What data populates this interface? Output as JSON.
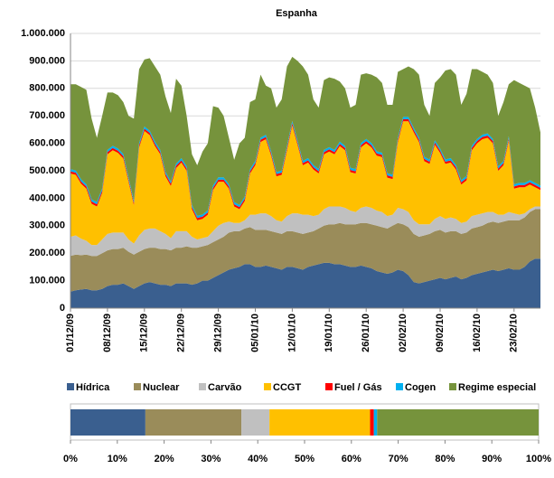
{
  "chart_data": [
    {
      "type": "area",
      "stacked": true,
      "title": "Espanha",
      "grid": true,
      "categories": [
        "01/12/09",
        null,
        null,
        null,
        null,
        null,
        null,
        "08/12/09",
        null,
        null,
        null,
        null,
        null,
        null,
        "15/12/09",
        null,
        null,
        null,
        null,
        null,
        null,
        "22/12/09",
        null,
        null,
        null,
        null,
        null,
        null,
        "29/12/09",
        null,
        null,
        null,
        null,
        null,
        null,
        "05/01/10",
        null,
        null,
        null,
        null,
        null,
        null,
        "12/01/10",
        null,
        null,
        null,
        null,
        null,
        null,
        "19/01/10",
        null,
        null,
        null,
        null,
        null,
        null,
        "26/01/10",
        null,
        null,
        null,
        null,
        null,
        null,
        "02/02/10",
        null,
        null,
        null,
        null,
        null,
        null,
        "09/02/10",
        null,
        null,
        null,
        null,
        null,
        null,
        "16/02/10",
        null,
        null,
        null,
        null,
        null,
        null,
        "23/02/10",
        null,
        null,
        null,
        null,
        null
      ],
      "series": [
        {
          "name": "Hídrica",
          "color": "#3a5f8f",
          "values": [
            60000,
            65000,
            68000,
            70000,
            65000,
            65000,
            70000,
            80000,
            85000,
            85000,
            90000,
            80000,
            70000,
            80000,
            90000,
            95000,
            90000,
            85000,
            85000,
            80000,
            90000,
            90000,
            90000,
            85000,
            90000,
            100000,
            100000,
            110000,
            120000,
            130000,
            140000,
            145000,
            150000,
            160000,
            160000,
            150000,
            150000,
            155000,
            150000,
            145000,
            140000,
            150000,
            150000,
            145000,
            140000,
            150000,
            155000,
            160000,
            165000,
            165000,
            160000,
            160000,
            155000,
            150000,
            150000,
            155000,
            150000,
            145000,
            135000,
            130000,
            125000,
            130000,
            140000,
            135000,
            120000,
            95000,
            90000,
            95000,
            100000,
            105000,
            110000,
            105000,
            110000,
            115000,
            105000,
            110000,
            120000,
            125000,
            130000,
            135000,
            140000,
            135000,
            140000,
            145000,
            140000,
            140000,
            150000,
            170000,
            180000,
            180000
          ]
        },
        {
          "name": "Nuclear",
          "color": "#9a8c5a",
          "values": [
            130000,
            130000,
            125000,
            125000,
            125000,
            125000,
            130000,
            130000,
            130000,
            130000,
            130000,
            125000,
            125000,
            125000,
            125000,
            125000,
            130000,
            130000,
            130000,
            130000,
            130000,
            130000,
            135000,
            135000,
            130000,
            125000,
            130000,
            130000,
            130000,
            130000,
            135000,
            135000,
            130000,
            130000,
            135000,
            135000,
            135000,
            130000,
            130000,
            130000,
            130000,
            130000,
            130000,
            130000,
            130000,
            125000,
            125000,
            130000,
            135000,
            140000,
            145000,
            150000,
            150000,
            155000,
            155000,
            155000,
            160000,
            160000,
            165000,
            165000,
            165000,
            170000,
            170000,
            170000,
            175000,
            175000,
            170000,
            170000,
            170000,
            175000,
            175000,
            170000,
            170000,
            165000,
            165000,
            165000,
            170000,
            170000,
            170000,
            175000,
            175000,
            175000,
            175000,
            175000,
            180000,
            180000,
            180000,
            180000,
            180000,
            180000
          ]
        },
        {
          "name": "Carvão",
          "color": "#c0c0c0",
          "values": [
            70000,
            70000,
            60000,
            50000,
            40000,
            40000,
            50000,
            60000,
            60000,
            60000,
            55000,
            45000,
            40000,
            60000,
            70000,
            70000,
            70000,
            65000,
            55000,
            45000,
            60000,
            60000,
            55000,
            40000,
            30000,
            30000,
            30000,
            40000,
            50000,
            50000,
            40000,
            30000,
            30000,
            30000,
            45000,
            55000,
            60000,
            60000,
            55000,
            45000,
            45000,
            55000,
            65000,
            70000,
            70000,
            65000,
            55000,
            50000,
            60000,
            65000,
            65000,
            60000,
            60000,
            50000,
            45000,
            55000,
            60000,
            60000,
            55000,
            55000,
            45000,
            40000,
            55000,
            55000,
            55000,
            50000,
            45000,
            40000,
            35000,
            45000,
            50000,
            50000,
            50000,
            45000,
            40000,
            40000,
            45000,
            45000,
            45000,
            40000,
            35000,
            30000,
            25000,
            30000,
            25000,
            20000,
            15000,
            10000,
            10000,
            10000
          ]
        },
        {
          "name": "CCGT",
          "color": "#ffc000",
          "values": [
            230000,
            220000,
            200000,
            190000,
            150000,
            140000,
            170000,
            290000,
            300000,
            290000,
            270000,
            210000,
            140000,
            320000,
            360000,
            340000,
            300000,
            280000,
            210000,
            190000,
            230000,
            250000,
            220000,
            100000,
            70000,
            70000,
            80000,
            150000,
            160000,
            150000,
            120000,
            60000,
            50000,
            70000,
            150000,
            180000,
            260000,
            270000,
            220000,
            160000,
            170000,
            240000,
            320000,
            250000,
            180000,
            190000,
            170000,
            150000,
            200000,
            200000,
            190000,
            220000,
            210000,
            140000,
            140000,
            220000,
            230000,
            220000,
            200000,
            200000,
            140000,
            130000,
            240000,
            320000,
            330000,
            320000,
            300000,
            230000,
            220000,
            270000,
            230000,
            200000,
            200000,
            180000,
            140000,
            150000,
            240000,
            260000,
            270000,
            270000,
            250000,
            160000,
            180000,
            260000,
            90000,
            100000,
            95000,
            90000,
            70000,
            60000
          ]
        },
        {
          "name": "Fuel / Gás",
          "color": "#ff0000",
          "values": [
            8000,
            8000,
            8000,
            8000,
            8000,
            8000,
            8000,
            8000,
            8000,
            8000,
            8000,
            8000,
            8000,
            8000,
            8000,
            8000,
            8000,
            8000,
            8000,
            8000,
            8000,
            8000,
            8000,
            8000,
            8000,
            8000,
            8000,
            8000,
            8000,
            8000,
            8000,
            8000,
            8000,
            8000,
            8000,
            8000,
            8000,
            8000,
            8000,
            8000,
            8000,
            8000,
            8000,
            8000,
            8000,
            8000,
            8000,
            8000,
            8000,
            8000,
            8000,
            8000,
            8000,
            8000,
            8000,
            8000,
            8000,
            8000,
            8000,
            8000,
            8000,
            8000,
            8000,
            8000,
            8000,
            8000,
            8000,
            8000,
            8000,
            8000,
            8000,
            8000,
            8000,
            8000,
            8000,
            8000,
            8000,
            8000,
            8000,
            8000,
            8000,
            8000,
            8000,
            8000,
            8000,
            8000,
            8000,
            8000,
            8000,
            8000
          ]
        },
        {
          "name": "Cogen",
          "color": "#00b0f0",
          "values": [
            8000,
            8000,
            8000,
            8000,
            8000,
            8000,
            8000,
            8000,
            8000,
            8000,
            8000,
            8000,
            8000,
            8000,
            8000,
            8000,
            8000,
            8000,
            8000,
            8000,
            8000,
            8000,
            8000,
            8000,
            8000,
            8000,
            8000,
            8000,
            8000,
            8000,
            8000,
            8000,
            8000,
            8000,
            8000,
            8000,
            8000,
            8000,
            8000,
            8000,
            8000,
            8000,
            8000,
            8000,
            8000,
            8000,
            8000,
            8000,
            8000,
            8000,
            8000,
            8000,
            8000,
            8000,
            8000,
            8000,
            8000,
            8000,
            8000,
            8000,
            8000,
            8000,
            8000,
            8000,
            8000,
            8000,
            8000,
            8000,
            8000,
            8000,
            8000,
            8000,
            8000,
            8000,
            8000,
            8000,
            8000,
            8000,
            8000,
            8000,
            8000,
            8000,
            8000,
            8000,
            8000,
            8000,
            8000,
            8000,
            8000,
            8000
          ]
        },
        {
          "name": "Regime especial",
          "color": "#76933c",
          "values": [
            309000,
            314000,
            336000,
            344000,
            294000,
            234000,
            264000,
            209000,
            194000,
            194000,
            189000,
            224000,
            299000,
            269000,
            244000,
            264000,
            274000,
            274000,
            274000,
            249000,
            309000,
            264000,
            184000,
            184000,
            184000,
            229000,
            244000,
            289000,
            254000,
            224000,
            169000,
            154000,
            224000,
            214000,
            244000,
            224000,
            229000,
            179000,
            229000,
            234000,
            259000,
            289000,
            234000,
            289000,
            344000,
            304000,
            239000,
            224000,
            254000,
            254000,
            259000,
            219000,
            209000,
            219000,
            234000,
            249000,
            239000,
            249000,
            269000,
            254000,
            249000,
            254000,
            239000,
            174000,
            184000,
            214000,
            229000,
            189000,
            159000,
            209000,
            259000,
            324000,
            324000,
            329000,
            274000,
            299000,
            279000,
            254000,
            229000,
            214000,
            204000,
            184000,
            214000,
            189000,
            379000,
            364000,
            354000,
            334000,
            274000,
            194000
          ]
        }
      ],
      "ylim": [
        0,
        1000000
      ],
      "yticks": [
        0,
        {
          "value": 100000,
          "label": "100.000"
        },
        {
          "value": 200000,
          "label": "200.000"
        },
        {
          "value": 300000,
          "label": "300.000"
        },
        {
          "value": 400000,
          "label": "400.000"
        },
        {
          "value": 500000,
          "label": "500.000"
        },
        {
          "value": 600000,
          "label": "600.000"
        },
        {
          "value": 700000,
          "label": "700.000"
        },
        {
          "value": 800000,
          "label": "800.000"
        },
        {
          "value": 900000,
          "label": "900.000"
        },
        {
          "value": 1000000,
          "label": "1.000.000"
        }
      ]
    },
    {
      "type": "bar",
      "orientation": "horizontal",
      "stacked": true,
      "series": [
        {
          "color": "#3a5f8f",
          "values": [
            16
          ]
        },
        {
          "color": "#9a8c5a",
          "values": [
            20.5
          ]
        },
        {
          "color": "#c0c0c0",
          "values": [
            6
          ]
        },
        {
          "color": "#ffc000",
          "values": [
            21.5
          ]
        },
        {
          "color": "#ff0000",
          "values": [
            0.8
          ]
        },
        {
          "color": "#00b0f0",
          "values": [
            0.7
          ]
        },
        {
          "color": "#76933c",
          "values": [
            34.5
          ]
        }
      ],
      "xlim": [
        0,
        100
      ],
      "xticks": [
        {
          "value": 0,
          "label": "0%"
        },
        {
          "value": 10,
          "label": "10%"
        },
        {
          "value": 20,
          "label": "20%"
        },
        {
          "value": 30,
          "label": "30%"
        },
        {
          "value": 40,
          "label": "40%"
        },
        {
          "value": 50,
          "label": "50%"
        },
        {
          "value": 60,
          "label": "60%"
        },
        {
          "value": 70,
          "label": "70%"
        },
        {
          "value": 80,
          "label": "80%"
        },
        {
          "value": 90,
          "label": "90%"
        },
        {
          "value": 100,
          "label": "100%"
        }
      ]
    }
  ]
}
